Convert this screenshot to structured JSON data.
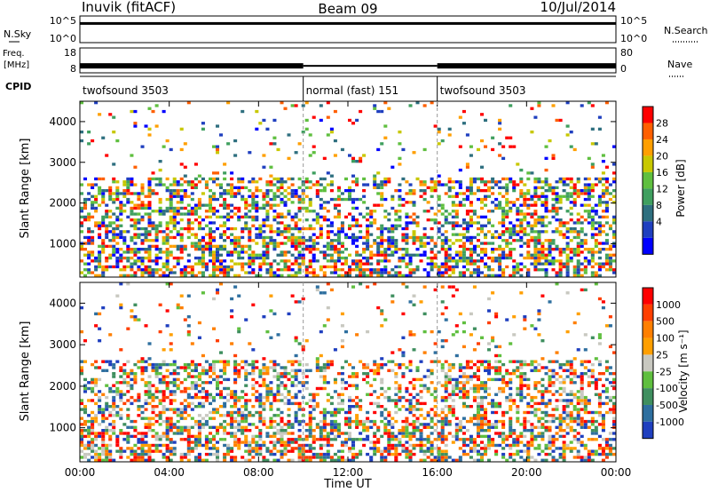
{
  "header": {
    "station": "Inuvik (fitACF)",
    "beam": "Beam 09",
    "date": "10/Jul/2014"
  },
  "chart_data": [
    {
      "type": "line",
      "name": "noise",
      "left_label": "N.Sky",
      "right_label": "N.Search",
      "left_ticks": [
        "10^5",
        "10^0"
      ],
      "right_ticks": [
        "10^5",
        "10^0"
      ],
      "level": 0.72
    },
    {
      "type": "line",
      "name": "frequency",
      "left_label_top": "Freq.",
      "left_label_bottom": "[MHz]",
      "right_label": "Nave",
      "left_ticks": [
        "18",
        "8"
      ],
      "right_ticks": [
        "80",
        "0"
      ],
      "level": 0.28
    },
    {
      "type": "table",
      "name": "cpid",
      "label": "CPID",
      "segments": [
        {
          "label": "twofsound 3503",
          "start": 0,
          "end": 10
        },
        {
          "label": "normal (fast) 151",
          "start": 10,
          "end": 16
        },
        {
          "label": "twofsound 3503",
          "start": 16,
          "end": 24
        }
      ]
    },
    {
      "type": "heatmap",
      "name": "power",
      "ylabel": "Slant Range [km]",
      "ylim": [
        180,
        4500
      ],
      "yticks": [
        "1000",
        "2000",
        "3000",
        "4000"
      ],
      "colorbar_label": "Power [dB]",
      "colorbar_ticks": [
        "28",
        "24",
        "20",
        "16",
        "12",
        "8",
        "4"
      ],
      "colors": [
        "#0000ff",
        "#1f3fbf",
        "#2e6f7f",
        "#3f9f5f",
        "#5fbf3f",
        "#c8c800",
        "#ff9f00",
        "#ff5f00",
        "#ff0000"
      ]
    },
    {
      "type": "heatmap",
      "name": "velocity",
      "ylabel": "Slant Range [km]",
      "ylim": [
        180,
        4500
      ],
      "yticks": [
        "1000",
        "2000",
        "3000",
        "4000"
      ],
      "colorbar_label": "Velocity [m s⁻¹]",
      "colorbar_ticks": [
        "1000",
        "500",
        "100",
        "25",
        "-25",
        "-100",
        "-500",
        "-1000"
      ],
      "colors": [
        "#1f3fbf",
        "#2e6f9f",
        "#3f8f5f",
        "#5fbf3f",
        "#c8c8c0",
        "#ff9f00",
        "#ff7f00",
        "#ff3f00",
        "#ff0000"
      ]
    }
  ],
  "x_axis": {
    "label": "Time UT",
    "xlim": [
      0,
      24
    ],
    "tick_labels": [
      "00:00",
      "04:00",
      "08:00",
      "12:00",
      "16:00",
      "20:00",
      "00:00"
    ]
  }
}
